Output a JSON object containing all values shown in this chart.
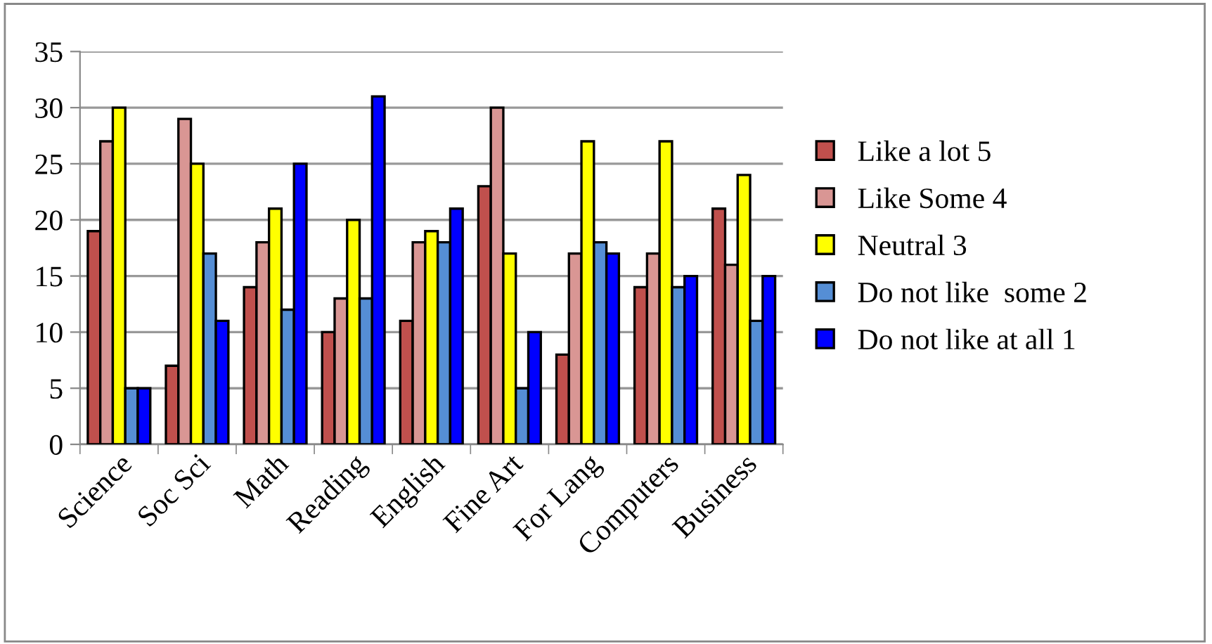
{
  "chart_data": {
    "type": "bar",
    "categories": [
      "Science",
      "Soc Sci",
      "Math",
      "Reading",
      "English",
      "Fine Art",
      "For Lang",
      "Computers",
      "Business"
    ],
    "series": [
      {
        "name": "Like a lot 5",
        "color": "#c0504d",
        "values": [
          19,
          7,
          14,
          10,
          11,
          23,
          8,
          14,
          21
        ]
      },
      {
        "name": "Like Some 4",
        "color": "#d99694",
        "values": [
          27,
          29,
          18,
          13,
          18,
          30,
          17,
          17,
          16
        ]
      },
      {
        "name": "Neutral 3",
        "color": "#ffff00",
        "values": [
          30,
          25,
          21,
          20,
          19,
          17,
          27,
          27,
          24
        ]
      },
      {
        "name": "Do not like  some 2",
        "color": "#558ed5",
        "values": [
          5,
          17,
          12,
          13,
          18,
          5,
          18,
          14,
          11
        ]
      },
      {
        "name": "Do not like at all 1",
        "color": "#0000ff",
        "values": [
          5,
          11,
          25,
          31,
          21,
          10,
          17,
          15,
          15
        ]
      }
    ],
    "ylim": [
      0,
      35
    ],
    "yticks": [
      0,
      5,
      10,
      15,
      20,
      25,
      30,
      35
    ],
    "grid": "y",
    "legend": "right"
  }
}
